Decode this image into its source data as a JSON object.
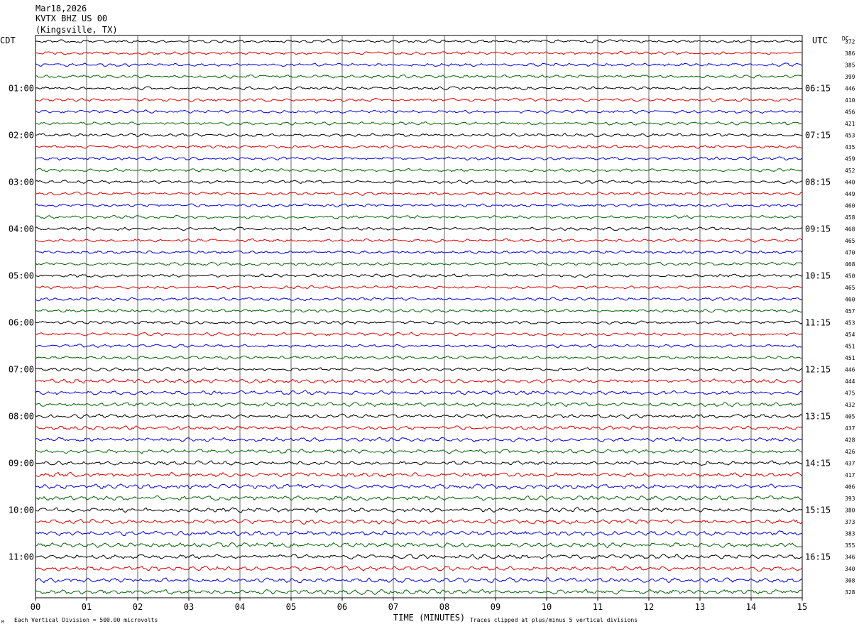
{
  "header": {
    "date": "Mar18,2026",
    "station": "KVTX BHZ US 00",
    "location": "(Kingsville, TX)"
  },
  "labels": {
    "left_timezone": "CDT",
    "right_timezone": "UTC",
    "dc_header": "DC",
    "xlabel": "TIME (MINUTES)",
    "scale_note": "Each Vertical Division =  500.00 microvolts",
    "clip_note": "Traces clipped at plus/minus 5 vertical divisions",
    "corner_mark": "M"
  },
  "colors": {
    "cycle": [
      "#000000",
      "#e00000",
      "#0000e0",
      "#006400"
    ],
    "grid": "#000000"
  },
  "chart_data": {
    "type": "line",
    "title": "KVTX BHZ US 00 (Kingsville, TX) Mar18,2026",
    "xlabel": "TIME (MINUTES)",
    "xlim": [
      0,
      15
    ],
    "x_ticks": [
      "00",
      "01",
      "02",
      "03",
      "04",
      "05",
      "06",
      "07",
      "08",
      "09",
      "10",
      "11",
      "12",
      "13",
      "14",
      "15"
    ],
    "rows_per_hour": 4,
    "row_minutes": 15,
    "row_count": 48,
    "left_hour_labels": [
      "01:00",
      "02:00",
      "03:00",
      "04:00",
      "05:00",
      "06:00",
      "07:00",
      "08:00",
      "09:00",
      "10:00",
      "11:00"
    ],
    "right_hour_labels": [
      "06:15",
      "07:15",
      "08:15",
      "09:15",
      "10:15",
      "11:15",
      "12:15",
      "13:15",
      "14:15",
      "15:15",
      "16:15"
    ],
    "dc_offsets": [
      "372",
      "386",
      "385",
      "399",
      "446",
      "410",
      "456",
      "421",
      "453",
      "435",
      "459",
      "452",
      "440",
      "449",
      "460",
      "458",
      "468",
      "465",
      "470",
      "468",
      "450",
      "465",
      "460",
      "457",
      "453",
      "454",
      "451",
      "451",
      "446",
      "444",
      "475",
      "432",
      "405",
      "437",
      "428",
      "426",
      "437",
      "417",
      "406",
      "393",
      "380",
      "373",
      "383",
      "355",
      "346",
      "340",
      "308",
      "328"
    ],
    "amplitude_division_microvolts": 500.0,
    "clip_divisions": 5,
    "series_note": "Continuous seismic noise traces; no discrete events labeled"
  }
}
